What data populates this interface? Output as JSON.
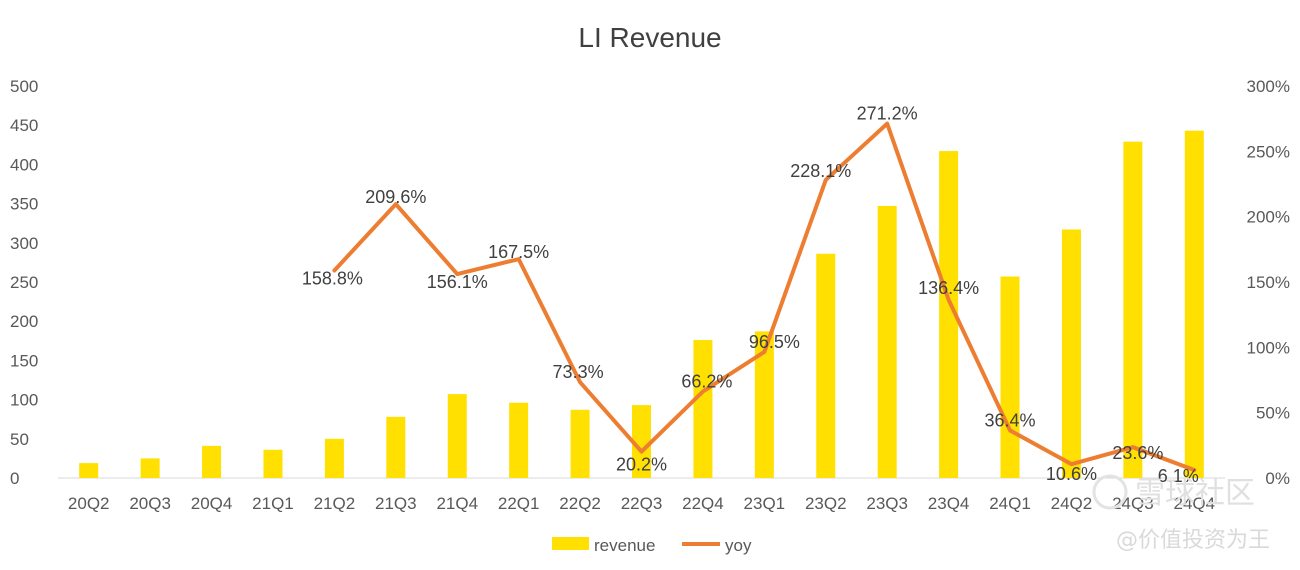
{
  "chart_data": {
    "type": "bar",
    "title": "LI Revenue",
    "categories": [
      "20Q2",
      "20Q3",
      "20Q4",
      "21Q1",
      "21Q2",
      "21Q3",
      "21Q4",
      "22Q1",
      "22Q2",
      "22Q3",
      "22Q4",
      "23Q1",
      "23Q2",
      "23Q3",
      "23Q4",
      "24Q1",
      "24Q2",
      "24Q3",
      "24Q4"
    ],
    "series": [
      {
        "name": "revenue",
        "type": "bar",
        "axis": "left",
        "color": "#FFE000",
        "values": [
          19,
          25,
          41,
          36,
          50,
          78,
          107,
          96,
          87,
          93,
          176,
          187,
          286,
          347,
          417,
          257,
          317,
          429,
          443
        ]
      },
      {
        "name": "yoy",
        "type": "line",
        "axis": "right",
        "color": "#ED7D31",
        "values": [
          null,
          null,
          null,
          null,
          158.8,
          209.6,
          156.1,
          167.5,
          73.3,
          20.2,
          66.2,
          96.5,
          228.1,
          271.2,
          136.4,
          36.4,
          10.6,
          23.6,
          6.1
        ],
        "labels": [
          "",
          "",
          "",
          "",
          "158.8%",
          "209.6%",
          "156.1%",
          "167.5%",
          "73.3%",
          "20.2%",
          "66.2%",
          "96.5%",
          "228.1%",
          "271.2%",
          "136.4%",
          "36.4%",
          "10.6%",
          "23.6%",
          "6.1%"
        ]
      }
    ],
    "y_left": {
      "range": [
        0,
        500
      ],
      "ticks": [
        "0",
        "50",
        "100",
        "150",
        "200",
        "250",
        "300",
        "350",
        "400",
        "450",
        "500"
      ]
    },
    "y_right": {
      "range": [
        0,
        300
      ],
      "ticks": [
        "0%",
        "50%",
        "100%",
        "150%",
        "200%",
        "250%",
        "300%"
      ]
    },
    "grid": false,
    "legend": {
      "position": "bottom",
      "entries": [
        "revenue",
        "yoy"
      ]
    }
  },
  "watermark": {
    "line1": "雪球社区",
    "line2": "@价值投资为王"
  }
}
